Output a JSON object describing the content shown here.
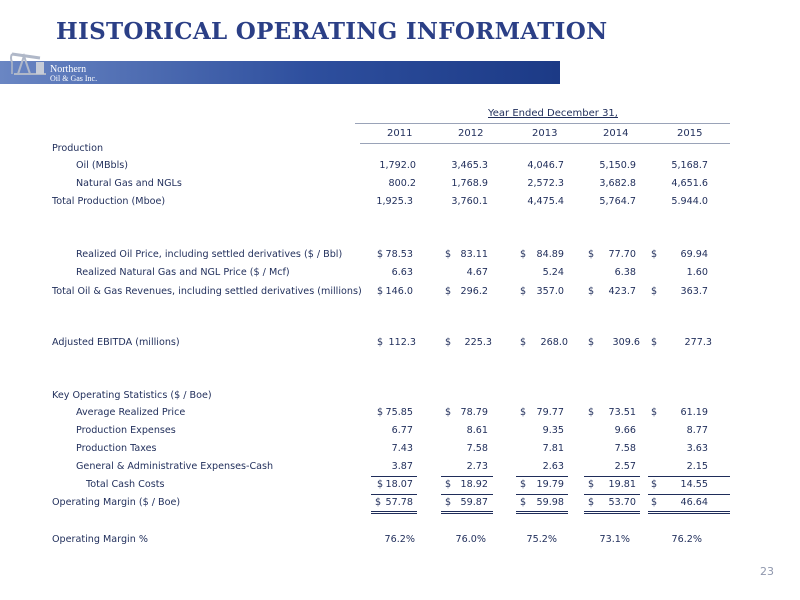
{
  "title": "HISTORICAL OPERATING INFORMATION",
  "logo": {
    "line1": "Northern",
    "line2": "Oil & Gas Inc."
  },
  "header": {
    "period": "Year Ended December 31,",
    "years": [
      "2011",
      "2012",
      "2013",
      "2014",
      "2015"
    ]
  },
  "rows": [
    {
      "label": "Production",
      "values": [
        "",
        "",
        "",
        "",
        ""
      ]
    },
    {
      "label": "Oil (MBbls)",
      "values": [
        "1,792.0",
        "3,465.3",
        "4,046.7",
        "5,150.9",
        "5,168.7"
      ]
    },
    {
      "label": "Natural Gas and NGLs",
      "values": [
        "800.2",
        "1,768.9",
        "2,572.3",
        "3,682.8",
        "4,651.6"
      ]
    },
    {
      "label": "Total Production (Mboe)",
      "values": [
        "1,925.3",
        "3,760.1",
        "4,475.4",
        "5,764.7",
        "5.944.0"
      ]
    },
    {
      "label": "Realized Oil Price, including settled derivatives ($ / Bbl)",
      "values": [
        "78.53",
        "83.11",
        "84.89",
        "77.70",
        "69.94"
      ]
    },
    {
      "label": "Realized Natural Gas and NGL Price ($ / Mcf)",
      "values": [
        "6.63",
        "4.67",
        "5.24",
        "6.38",
        "1.60"
      ]
    },
    {
      "label": "Total Oil & Gas Revenues, including settled derivatives (millions)",
      "values": [
        "146.0",
        "296.2",
        "357.0",
        "423.7",
        "363.7"
      ]
    },
    {
      "label": "Adjusted EBITDA (millions)",
      "values": [
        "112.3",
        "225.3",
        "268.0",
        "309.6",
        "277.3"
      ]
    },
    {
      "label": "Key Operating Statistics ($ / Boe)",
      "values": [
        "",
        "",
        "",
        "",
        ""
      ]
    },
    {
      "label": "Average Realized Price",
      "values": [
        "75.85",
        "78.79",
        "79.77",
        "73.51",
        "61.19"
      ]
    },
    {
      "label": "Production Expenses",
      "values": [
        "6.77",
        "8.61",
        "9.35",
        "9.66",
        "8.77"
      ]
    },
    {
      "label": "Production Taxes",
      "values": [
        "7.43",
        "7.58",
        "7.81",
        "7.58",
        "3.63"
      ]
    },
    {
      "label": "General & Administrative Expenses-Cash",
      "values": [
        "3.87",
        "2.73",
        "2.63",
        "2.57",
        "2.15"
      ]
    },
    {
      "label": "Total Cash Costs",
      "values": [
        "18.07",
        "18.92",
        "19.79",
        "19.81",
        "14.55"
      ]
    },
    {
      "label": "Operating Margin ($ / Boe)",
      "values": [
        "57.78",
        "59.87",
        "59.98",
        "53.70",
        "46.64"
      ]
    },
    {
      "label": "Operating Margin %",
      "values": [
        "76.2%",
        "76.0%",
        "75.2%",
        "73.1%",
        "76.2%"
      ]
    }
  ],
  "currency_symbol": "$",
  "page_number": "23"
}
